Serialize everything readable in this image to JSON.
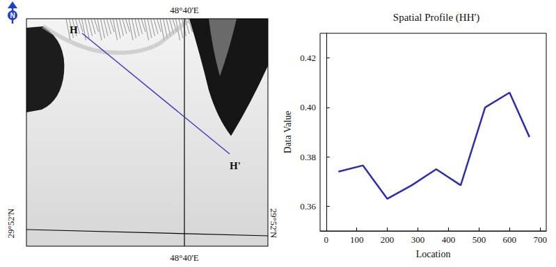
{
  "chart_data": {
    "type": "line",
    "title": "Spatial Profile (HH')",
    "x_label": "Location",
    "y_label": "Data Value",
    "x": [
      40,
      120,
      200,
      280,
      360,
      440,
      520,
      600,
      665
    ],
    "values": [
      0.374,
      0.3765,
      0.363,
      0.3685,
      0.375,
      0.3685,
      0.4,
      0.406,
      0.388
    ],
    "color": "#2b2bb5",
    "xlim": [
      -20,
      720
    ],
    "xticks": [
      0,
      100,
      200,
      300,
      400,
      500,
      600,
      700
    ],
    "ylim": [
      0.35,
      0.43
    ],
    "yticks": [
      0.36,
      0.38,
      {
        "value": 0.4,
        "label": "0.40"
      },
      0.42
    ],
    "grid": false
  },
  "map": {
    "north": "N",
    "profile_start": "H",
    "profile_end": "H'",
    "meridian_top": "48°40'E",
    "meridian_bottom": "48°40'E",
    "parallel_left": "29°52'N",
    "parallel_right": "29°52'N"
  }
}
